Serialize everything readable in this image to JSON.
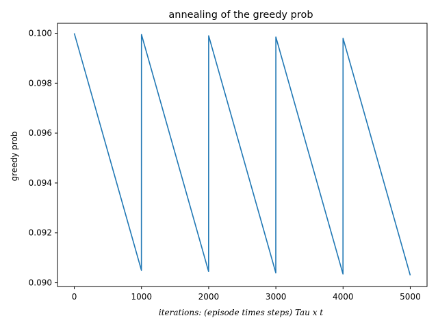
{
  "chart_data": {
    "type": "line",
    "title": "annealing of the greedy prob",
    "xlabel": "iterations: (episode times steps) Tau x t",
    "ylabel": "greedy prob",
    "xlim": [
      -250,
      5250
    ],
    "ylim": [
      0.08985,
      0.1004
    ],
    "xticks": [
      0,
      1000,
      2000,
      3000,
      4000,
      5000
    ],
    "xtick_labels": [
      "0",
      "1000",
      "2000",
      "3000",
      "4000",
      "5000"
    ],
    "yticks": [
      0.09,
      0.092,
      0.094,
      0.096,
      0.098,
      0.1
    ],
    "ytick_labels": [
      "0.090",
      "0.092",
      "0.094",
      "0.096",
      "0.098",
      "0.100"
    ],
    "grid": false,
    "legend": "none",
    "series": [
      {
        "color": "#1f77b4",
        "x": [
          0,
          999,
          1000,
          1999,
          2000,
          2999,
          3000,
          3999,
          4000,
          5000
        ],
        "y": [
          0.1,
          0.0905,
          0.09995,
          0.09045,
          0.0999,
          0.0904,
          0.09985,
          0.09035,
          0.0998,
          0.0903
        ]
      }
    ]
  }
}
